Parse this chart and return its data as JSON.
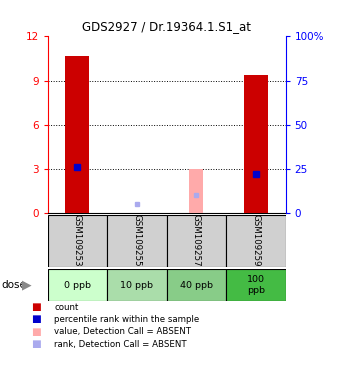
{
  "title": "GDS2927 / Dr.19364.1.S1_at",
  "samples": [
    "GSM109253",
    "GSM109255",
    "GSM109257",
    "GSM109259"
  ],
  "doses": [
    "0 ppb",
    "10 ppb",
    "40 ppb",
    "100\nppb"
  ],
  "dose_colors": [
    "#ccffcc",
    "#aaddaa",
    "#88cc88",
    "#44bb44"
  ],
  "ylim_left": [
    0,
    12
  ],
  "ylim_right": [
    0,
    100
  ],
  "yticks_left": [
    0,
    3,
    6,
    9,
    12
  ],
  "yticks_right": [
    0,
    25,
    50,
    75,
    100
  ],
  "count_values": [
    10.7,
    0.0,
    0.0,
    9.4
  ],
  "count_color": "#cc0000",
  "percentile_rank_pct": [
    26.0,
    0.0,
    0.0,
    22.0
  ],
  "percentile_color": "#0000cc",
  "absent_value": [
    0.0,
    0.0,
    3.0,
    0.0
  ],
  "absent_rank_pct": [
    0.0,
    5.0,
    10.0,
    0.0
  ],
  "absent_value_color": "#ffaaaa",
  "absent_rank_color": "#aaaaee",
  "bar_width": 0.4,
  "background_color": "#ffffff"
}
